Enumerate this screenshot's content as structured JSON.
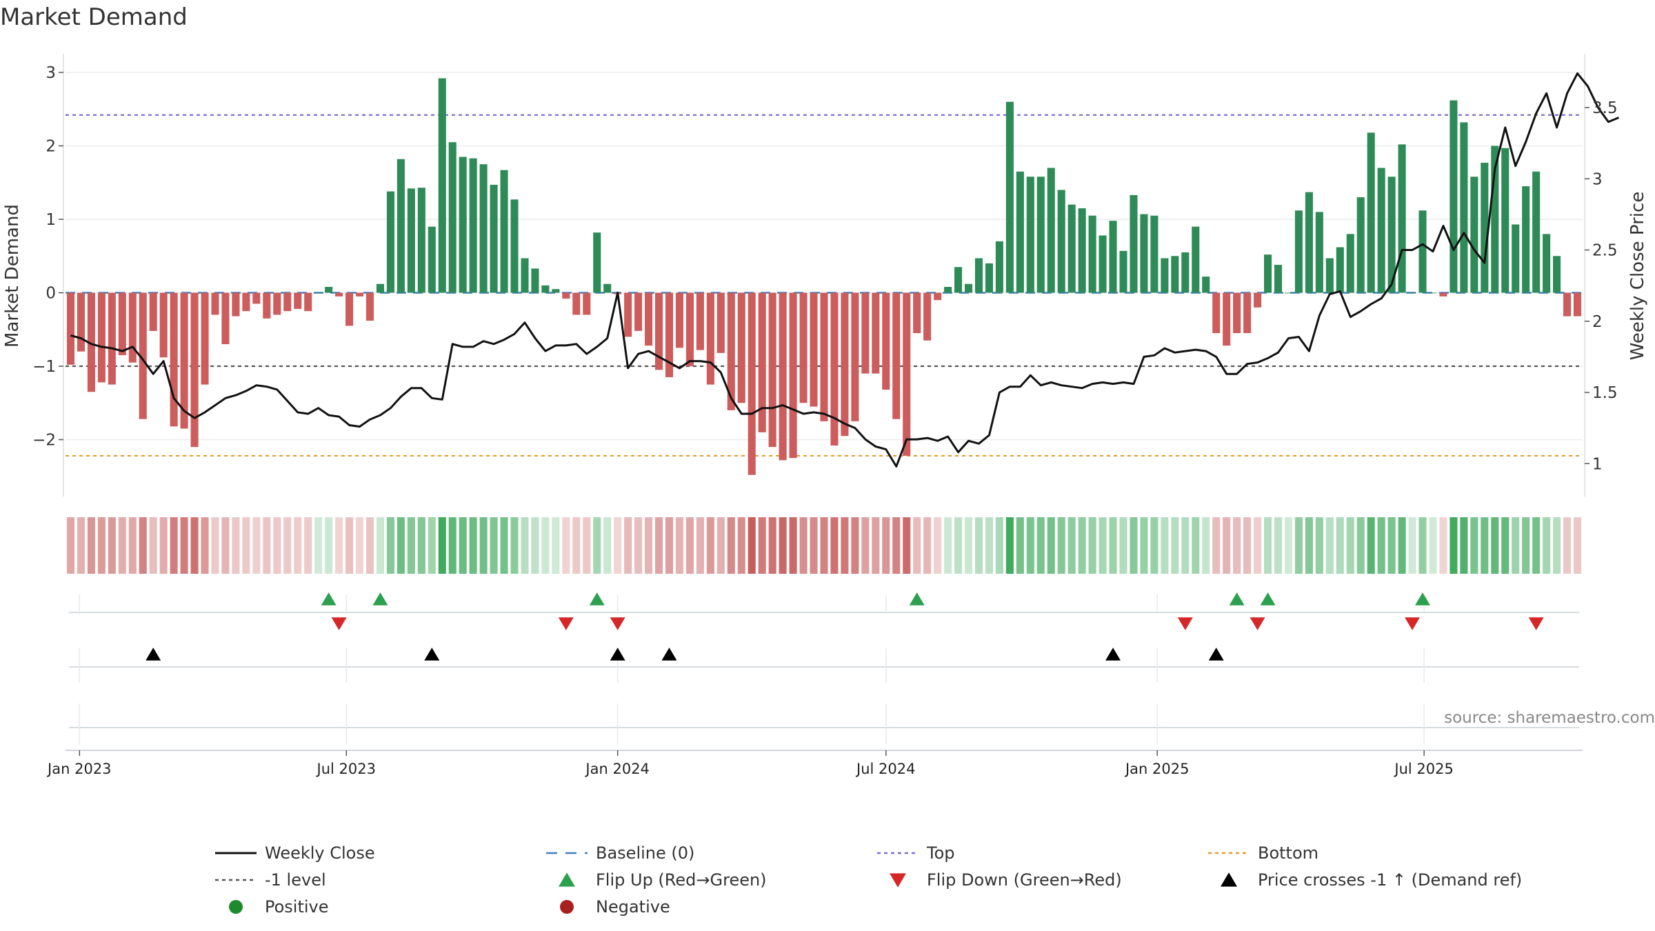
{
  "chart_data": {
    "type": "bar",
    "title": "Market Demand",
    "ylabel_left": "Market Demand",
    "ylabel_right": "Weekly Close Price",
    "source": "source: sharemaestro.com",
    "ylim_left": [
      -2.8,
      3.2
    ],
    "ylim_right": [
      0.7,
      3.8
    ],
    "yticks_left": [
      {
        "v": 3,
        "label": "3"
      },
      {
        "v": 2,
        "label": "2"
      },
      {
        "v": 1,
        "label": "1"
      },
      {
        "v": 0,
        "label": "0"
      },
      {
        "v": -1,
        "label": "−1"
      },
      {
        "v": -2,
        "label": "−2"
      }
    ],
    "yticks_right": [
      {
        "v": 3.5,
        "label": "3.5"
      },
      {
        "v": 3,
        "label": "3"
      },
      {
        "v": 2.5,
        "label": "2.5"
      },
      {
        "v": 2,
        "label": "2"
      },
      {
        "v": 1.5,
        "label": "1.5"
      },
      {
        "v": 1,
        "label": "1"
      }
    ],
    "x_start_date": "2022-12-26",
    "xticks": [
      {
        "date": "2023-01-01",
        "label": "Jan 2023"
      },
      {
        "date": "2023-07-01",
        "label": "Jul 2023"
      },
      {
        "date": "2024-01-01",
        "label": "Jan 2024"
      },
      {
        "date": "2024-07-01",
        "label": "Jul 2024"
      },
      {
        "date": "2025-01-01",
        "label": "Jan 2025"
      },
      {
        "date": "2025-07-01",
        "label": "Jul 2025"
      }
    ],
    "reference_lines": [
      {
        "name": "Top",
        "value": 2.42,
        "color": "#7b6fd0"
      },
      {
        "name": "-1 level",
        "value": -1,
        "color": "#555555"
      },
      {
        "name": "Bottom",
        "value": -2.22,
        "color": "#e69a2e"
      },
      {
        "name": "Baseline (0)",
        "value": 0,
        "color": "#3f7fbf"
      }
    ],
    "demand": [
      -0.98,
      -0.8,
      -1.35,
      -1.22,
      -1.25,
      -0.85,
      -0.95,
      -1.72,
      -0.52,
      -0.88,
      -1.82,
      -1.85,
      -2.1,
      -1.25,
      -0.3,
      -0.7,
      -0.32,
      -0.25,
      -0.15,
      -0.35,
      -0.3,
      -0.25,
      -0.22,
      -0.25,
      0.0,
      0.08,
      -0.05,
      -0.45,
      -0.05,
      -0.38,
      0.12,
      1.38,
      1.82,
      1.42,
      1.43,
      0.9,
      2.92,
      2.05,
      1.85,
      1.83,
      1.75,
      1.47,
      1.67,
      1.27,
      0.47,
      0.33,
      0.1,
      0.05,
      -0.08,
      -0.3,
      -0.3,
      0.82,
      0.12,
      -0.02,
      -0.6,
      -0.52,
      -0.72,
      -1.05,
      -1.15,
      -0.75,
      -1.0,
      -0.78,
      -1.25,
      -0.82,
      -1.6,
      -1.5,
      -2.48,
      -1.9,
      -2.1,
      -2.28,
      -2.25,
      -1.5,
      -1.55,
      -1.75,
      -2.08,
      -1.95,
      -1.75,
      -1.1,
      -1.1,
      -1.32,
      -1.72,
      -2.22,
      -0.55,
      -0.65,
      -0.1,
      0.08,
      0.35,
      0.12,
      0.47,
      0.4,
      0.7,
      2.6,
      1.65,
      1.58,
      1.58,
      1.7,
      1.4,
      1.2,
      1.15,
      1.05,
      0.78,
      0.98,
      0.57,
      1.33,
      1.07,
      1.05,
      0.47,
      0.5,
      0.55,
      0.9,
      0.22,
      -0.55,
      -0.72,
      -0.55,
      -0.55,
      -0.2,
      0.52,
      0.38,
      0.0,
      1.12,
      1.37,
      1.1,
      0.47,
      0.62,
      0.8,
      1.3,
      2.18,
      1.7,
      1.58,
      2.02,
      0.0,
      1.12,
      0.0,
      -0.05,
      2.62,
      2.32,
      1.58,
      1.77,
      2.0,
      1.97,
      0.93,
      1.45,
      1.65,
      0.8,
      0.5,
      -0.32,
      -0.32
    ],
    "close": [
      1.9,
      1.88,
      1.84,
      1.82,
      1.81,
      1.79,
      1.82,
      1.73,
      1.63,
      1.72,
      1.46,
      1.37,
      1.32,
      1.36,
      1.41,
      1.46,
      1.48,
      1.51,
      1.55,
      1.54,
      1.52,
      1.44,
      1.36,
      1.35,
      1.39,
      1.34,
      1.33,
      1.27,
      1.26,
      1.31,
      1.34,
      1.39,
      1.47,
      1.53,
      1.53,
      1.46,
      1.45,
      1.84,
      1.82,
      1.82,
      1.86,
      1.84,
      1.87,
      1.91,
      1.99,
      1.88,
      1.79,
      1.83,
      1.83,
      1.84,
      1.77,
      1.82,
      1.88,
      2.2,
      1.67,
      1.77,
      1.79,
      1.75,
      1.71,
      1.67,
      1.72,
      1.72,
      1.71,
      1.64,
      1.46,
      1.35,
      1.35,
      1.39,
      1.39,
      1.41,
      1.38,
      1.35,
      1.36,
      1.35,
      1.32,
      1.28,
      1.25,
      1.17,
      1.12,
      1.1,
      0.98,
      1.17,
      1.17,
      1.18,
      1.16,
      1.19,
      1.08,
      1.16,
      1.14,
      1.2,
      1.5,
      1.54,
      1.54,
      1.62,
      1.55,
      1.57,
      1.55,
      1.54,
      1.53,
      1.56,
      1.57,
      1.56,
      1.57,
      1.56,
      1.75,
      1.76,
      1.81,
      1.78,
      1.79,
      1.8,
      1.79,
      1.75,
      1.63,
      1.63,
      1.7,
      1.71,
      1.74,
      1.78,
      1.88,
      1.89,
      1.79,
      2.04,
      2.19,
      2.21,
      2.03,
      2.07,
      2.12,
      2.16,
      2.26,
      2.5,
      2.5,
      2.54,
      2.49,
      2.67,
      2.5,
      2.62,
      2.5,
      2.41,
      3.07,
      3.36,
      3.09,
      3.26,
      3.46,
      3.6,
      3.36,
      3.6,
      3.74,
      3.65,
      3.5,
      3.4,
      3.43
    ],
    "flip_up_weeks": [
      25,
      30,
      51,
      82,
      113,
      116,
      131
    ],
    "flip_down_weeks": [
      26,
      48,
      53,
      108,
      115,
      130,
      142
    ],
    "price_cross_weeks": [
      8,
      35,
      53,
      58,
      101,
      111
    ]
  },
  "legend": {
    "items": [
      {
        "key": "weekly-close",
        "label": "Weekly Close",
        "style": "line-solid",
        "color": "#111111"
      },
      {
        "key": "baseline",
        "label": "Baseline (0)",
        "style": "line-dash",
        "color": "#3f7fbf"
      },
      {
        "key": "top",
        "label": "Top",
        "style": "line-dot",
        "color": "#7b6fd0"
      },
      {
        "key": "bottom",
        "label": "Bottom",
        "style": "line-dot",
        "color": "#e69a2e"
      },
      {
        "key": "minus-one-level",
        "label": "-1 level",
        "style": "line-dot",
        "color": "#555555"
      },
      {
        "key": "flip-up",
        "label": "Flip Up (Red→Green)",
        "style": "tri-up",
        "color": "#2ca04c"
      },
      {
        "key": "flip-down",
        "label": "Flip Down (Green→Red)",
        "style": "tri-down",
        "color": "#d62728"
      },
      {
        "key": "price-cross",
        "label": "Price crosses -1 ↑ (Demand ref)",
        "style": "tri-up",
        "color": "#000000"
      },
      {
        "key": "positive",
        "label": "Positive",
        "style": "dot",
        "color": "#1e8a2e"
      },
      {
        "key": "negative",
        "label": "Negative",
        "style": "dot",
        "color": "#a82020"
      }
    ]
  },
  "colors": {
    "positive_bar": "#2e8b57",
    "negative_bar": "#cd5c5c",
    "close_line": "#111111"
  }
}
